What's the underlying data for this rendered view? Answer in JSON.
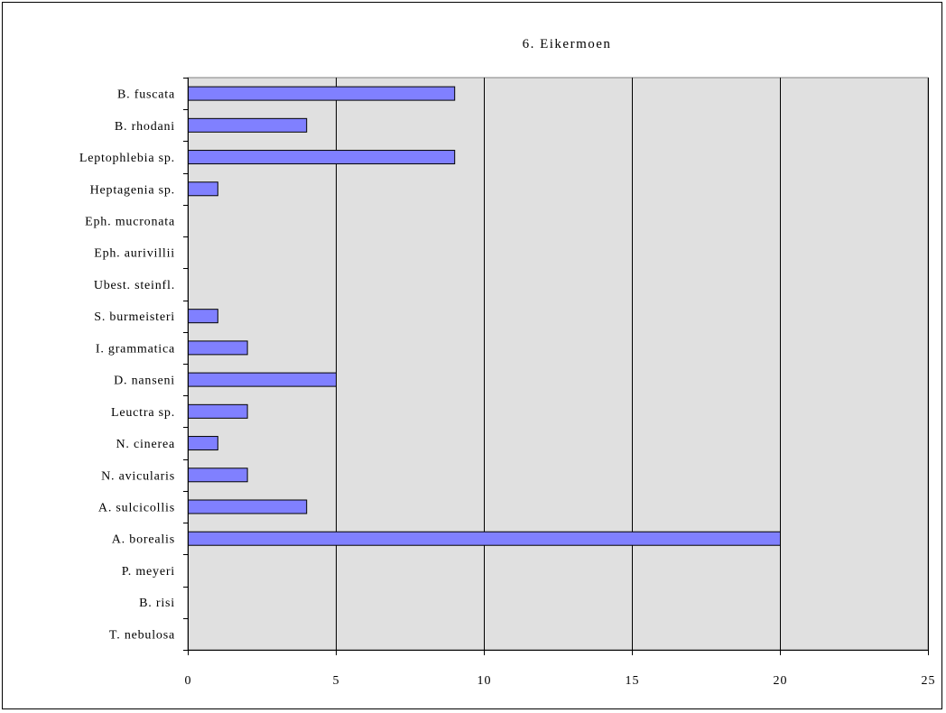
{
  "chart_data": {
    "type": "bar",
    "orientation": "horizontal",
    "title": "6. Eikermoen",
    "xlabel": "",
    "ylabel": "",
    "categories": [
      "B. fuscata",
      "B. rhodani",
      "Leptophlebia sp.",
      "Heptagenia sp.",
      "Eph. mucronata",
      "Eph. aurivillii",
      "Ubest. steinfl.",
      "S. burmeisteri",
      "I. grammatica",
      "D. nanseni",
      "Leuctra sp.",
      "N. cinerea",
      "N. avicularis",
      "A. sulcicollis",
      "A. borealis",
      "P. meyeri",
      "B. risi",
      "T. nebulosa"
    ],
    "values": [
      9,
      4,
      9,
      1,
      0,
      0,
      0,
      1,
      2,
      5,
      2,
      1,
      2,
      4,
      20,
      0,
      0,
      0
    ],
    "xlim": [
      0,
      25
    ],
    "xticks": [
      "0",
      "5",
      "10",
      "15",
      "20",
      "25"
    ],
    "grid": "vertical",
    "legend": "none",
    "colors": {
      "bar_fill": "#8080ff",
      "bar_stroke": "#000000",
      "plot_background": "#e0e0e0",
      "gridline": "#000000"
    }
  }
}
